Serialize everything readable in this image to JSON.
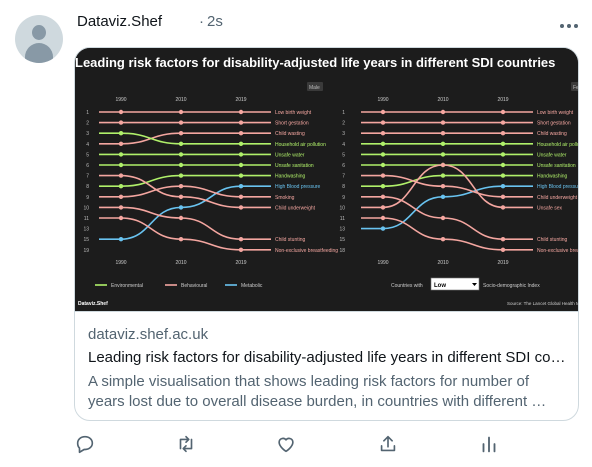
{
  "tweet": {
    "author": "Dataviz.Shef",
    "separator": "·",
    "time": "2s"
  },
  "icons": {
    "more": "more-horizontal-icon",
    "reply": "reply-icon",
    "retweet": "retweet-icon",
    "like": "like-icon",
    "share": "share-icon",
    "analytics": "analytics-icon"
  },
  "card": {
    "domain": "dataviz.shef.ac.uk",
    "title": "Leading risk factors for disability-adjusted life years in different SDI co…",
    "description": "A simple visualisation that shows leading risk factors for number of years lost due to overall disease burden, in countries with different …"
  },
  "colors": {
    "environmental": "#b0f06a",
    "behavioural": "#f4a6a0",
    "metabolic": "#69c3f0",
    "chart_background": "#1c1c1c"
  },
  "chart_data": {
    "type": "line",
    "title": "Leading risk factors for disability-adjusted life years in different SDI countries",
    "x": [
      "1990",
      "2010",
      "2019"
    ],
    "panels": [
      {
        "name": "Male",
        "y_ticks": [
          "1",
          "2",
          "3",
          "4",
          "5",
          "6",
          "7",
          "8",
          "9",
          "10",
          "11",
          "13",
          "15",
          "19"
        ],
        "series": [
          {
            "label": "Low birth weight",
            "category": "Behavioural",
            "ranks": [
              1,
              1,
              1
            ]
          },
          {
            "label": "Short gestation",
            "category": "Behavioural",
            "ranks": [
              2,
              2,
              2
            ]
          },
          {
            "label": "Child wasting",
            "category": "Behavioural",
            "ranks": [
              4,
              3,
              3
            ]
          },
          {
            "label": "Household air pollution",
            "category": "Environmental",
            "ranks": [
              3,
              4,
              4
            ]
          },
          {
            "label": "Unsafe water",
            "category": "Environmental",
            "ranks": [
              5,
              5,
              5
            ]
          },
          {
            "label": "Unsafe sanitation",
            "category": "Environmental",
            "ranks": [
              6,
              6,
              6
            ]
          },
          {
            "label": "Handwashing",
            "category": "Environmental",
            "ranks": [
              8,
              7,
              7
            ]
          },
          {
            "label": "High Blood pressure",
            "category": "Metabolic",
            "ranks": [
              13,
              10,
              8
            ]
          },
          {
            "label": "Smoking",
            "category": "Behavioural",
            "ranks": [
              9,
              8,
              9
            ]
          },
          {
            "label": "Child underweight",
            "category": "Behavioural",
            "ranks": [
              7,
              9,
              10
            ]
          },
          {
            "label": "Child stunting",
            "category": "Behavioural",
            "ranks": [
              10,
              11,
              13
            ]
          },
          {
            "label": "Non-exclusive breastfeeding",
            "category": "Behavioural",
            "ranks": [
              11,
              13,
              14
            ]
          }
        ]
      },
      {
        "name": "Female",
        "y_ticks": [
          "1",
          "2",
          "3",
          "4",
          "5",
          "6",
          "7",
          "8",
          "9",
          "10",
          "11",
          "13",
          "15",
          "18"
        ],
        "series": [
          {
            "label": "Low birth weight",
            "category": "Behavioural",
            "ranks": [
              1,
              1,
              1
            ]
          },
          {
            "label": "Short gestation",
            "category": "Behavioural",
            "ranks": [
              2,
              2,
              2
            ]
          },
          {
            "label": "Child wasting",
            "category": "Behavioural",
            "ranks": [
              3,
              3,
              3
            ]
          },
          {
            "label": "Household air pollution",
            "category": "Environmental",
            "ranks": [
              4,
              4,
              4
            ]
          },
          {
            "label": "Unsafe water",
            "category": "Environmental",
            "ranks": [
              5,
              5,
              5
            ]
          },
          {
            "label": "Unsafe sanitation",
            "category": "Environmental",
            "ranks": [
              6,
              6,
              6
            ]
          },
          {
            "label": "Handwashing",
            "category": "Environmental",
            "ranks": [
              8,
              7,
              7
            ]
          },
          {
            "label": "High Blood pressure",
            "category": "Metabolic",
            "ranks": [
              12,
              9,
              8
            ]
          },
          {
            "label": "Child underweight",
            "category": "Behavioural",
            "ranks": [
              7,
              8,
              9
            ]
          },
          {
            "label": "Unsafe sex",
            "category": "Behavioural",
            "ranks": [
              10,
              6,
              10
            ]
          },
          {
            "label": "Child stunting",
            "category": "Behavioural",
            "ranks": [
              9,
              11,
              13
            ]
          },
          {
            "label": "Non-exclusive breastfeeding",
            "category": "Behavioural",
            "ranks": [
              11,
              13,
              14
            ]
          }
        ]
      }
    ],
    "legend": [
      "Environmental",
      "Behavioural",
      "Metabolic"
    ],
    "selector_label": "Countries with",
    "selector_value": "Low",
    "selector_suffix": "Socio-demographic Index",
    "brand": "Dataviz.Shef",
    "source": "Source: The Lancet Global Health Metrics"
  }
}
